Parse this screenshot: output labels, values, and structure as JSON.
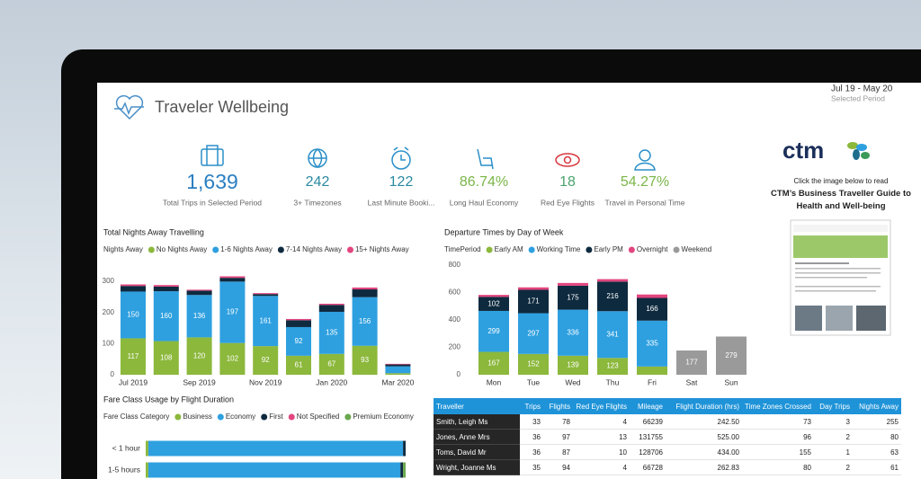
{
  "header": {
    "title": "Traveler Wellbeing",
    "period": "Jul 19 - May 20",
    "period_label": "Selected Period"
  },
  "kpis": [
    {
      "value": "1,639",
      "label": "Total Trips in Selected Period",
      "color": "#2a7fc2"
    },
    {
      "value": "242",
      "label": "3+ Timezones",
      "color": "#2a8aa0"
    },
    {
      "value": "122",
      "label": "Last Minute Booki...",
      "color": "#2a8aa0"
    },
    {
      "value": "86.74%",
      "label": "Long Haul Economy",
      "color": "#7ab648"
    },
    {
      "value": "18",
      "label": "Red Eye Flights",
      "color": "#4aa36c"
    },
    {
      "value": "54.27%",
      "label": "Travel in Personal Time",
      "color": "#7ab648"
    }
  ],
  "sidebar": {
    "logo": "ctm",
    "prompt": "Click the image below to read",
    "guide_title": "CTM’s Business Traveller Guide to Health and Well-being"
  },
  "chart_data": [
    {
      "type": "bar",
      "stacked": true,
      "title": "Total Nights Away Travelling",
      "legend_title": "Nights Away",
      "categories": [
        "Jul 2019",
        null,
        "Sep 2019",
        null,
        "Nov 2019",
        null,
        "Jan 2020",
        null,
        "Mar 2020"
      ],
      "series": [
        {
          "name": "No Nights Away",
          "color": "#8cb83c",
          "values": [
            117,
            108,
            120,
            102,
            92,
            61,
            67,
            93,
            5
          ]
        },
        {
          "name": "1-6 Nights Away",
          "color": "#2ea0e0",
          "values": [
            150,
            160,
            136,
            197,
            161,
            92,
            135,
            156,
            22
          ]
        },
        {
          "name": "7-14 Nights Away",
          "color": "#0e2a3f",
          "values": [
            18,
            15,
            14,
            12,
            6,
            22,
            22,
            25,
            6
          ]
        },
        {
          "name": "15+ Nights Away",
          "color": "#e2457f",
          "values": [
            5,
            5,
            3,
            5,
            3,
            4,
            4,
            6,
            2
          ]
        }
      ],
      "ylim": [
        0,
        330
      ],
      "yticks": [
        0,
        100,
        200,
        300
      ],
      "grid": false
    },
    {
      "type": "bar",
      "stacked": true,
      "title": "Departure Times by Day of Week",
      "legend_title": "TimePeriod",
      "categories": [
        "Mon",
        "Tue",
        "Wed",
        "Thu",
        "Fri",
        "Sat",
        "Sun"
      ],
      "series": [
        {
          "name": "Early AM",
          "color": "#8cb83c",
          "values": [
            167,
            152,
            139,
            123,
            60,
            null,
            null
          ]
        },
        {
          "name": "Working Time",
          "color": "#2ea0e0",
          "values": [
            299,
            297,
            336,
            341,
            335,
            null,
            null
          ]
        },
        {
          "name": "Early PM",
          "color": "#0e2a3f",
          "values": [
            102,
            171,
            175,
            216,
            166,
            null,
            null
          ]
        },
        {
          "name": "Overnight",
          "color": "#e2457f",
          "values": [
            15,
            18,
            20,
            18,
            25,
            null,
            null
          ]
        },
        {
          "name": "Weekend",
          "color": "#9a9a9a",
          "values": [
            null,
            null,
            null,
            null,
            null,
            177,
            279
          ]
        }
      ],
      "ylim": [
        0,
        820
      ],
      "yticks": [
        0,
        200,
        400,
        600,
        800
      ],
      "grid": false
    },
    {
      "type": "hbar",
      "stacked": true,
      "title": "Fare Class Usage by Flight Duration",
      "legend_title": "Fare Class Category",
      "categories": [
        "< 1 hour",
        "1-5 hours"
      ],
      "series": [
        {
          "name": "Business",
          "color": "#8cb83c",
          "values": [
            1,
            1
          ]
        },
        {
          "name": "Economy",
          "color": "#2ea0e0",
          "values": [
            98,
            97
          ]
        },
        {
          "name": "First",
          "color": "#0e2a3f",
          "values": [
            1,
            1
          ]
        },
        {
          "name": "Not Specified",
          "color": "#e2457f",
          "values": [
            0,
            0
          ]
        },
        {
          "name": "Premium Economy",
          "color": "#6aa84f",
          "values": [
            0,
            1
          ]
        }
      ],
      "xlim": [
        0,
        100
      ]
    }
  ],
  "table": {
    "columns": [
      "Traveller",
      "Trips",
      "Flights",
      "Red Eye Flights",
      "Mileage",
      "Flight Duration (hrs)",
      "Time Zones Crossed",
      "Day Trips",
      "Nights Away"
    ],
    "rows": [
      [
        "Smith, Leigh Ms",
        "33",
        "78",
        "4",
        "66239",
        "242.50",
        "73",
        "3",
        "255"
      ],
      [
        "Jones, Anne Mrs",
        "36",
        "97",
        "13",
        "131755",
        "525.00",
        "96",
        "2",
        "80"
      ],
      [
        "Toms, David Mr",
        "36",
        "87",
        "10",
        "128706",
        "434.00",
        "155",
        "1",
        "63"
      ],
      [
        "Wright, Joanne Ms",
        "35",
        "94",
        "4",
        "66728",
        "262.83",
        "80",
        "2",
        "61"
      ]
    ]
  }
}
